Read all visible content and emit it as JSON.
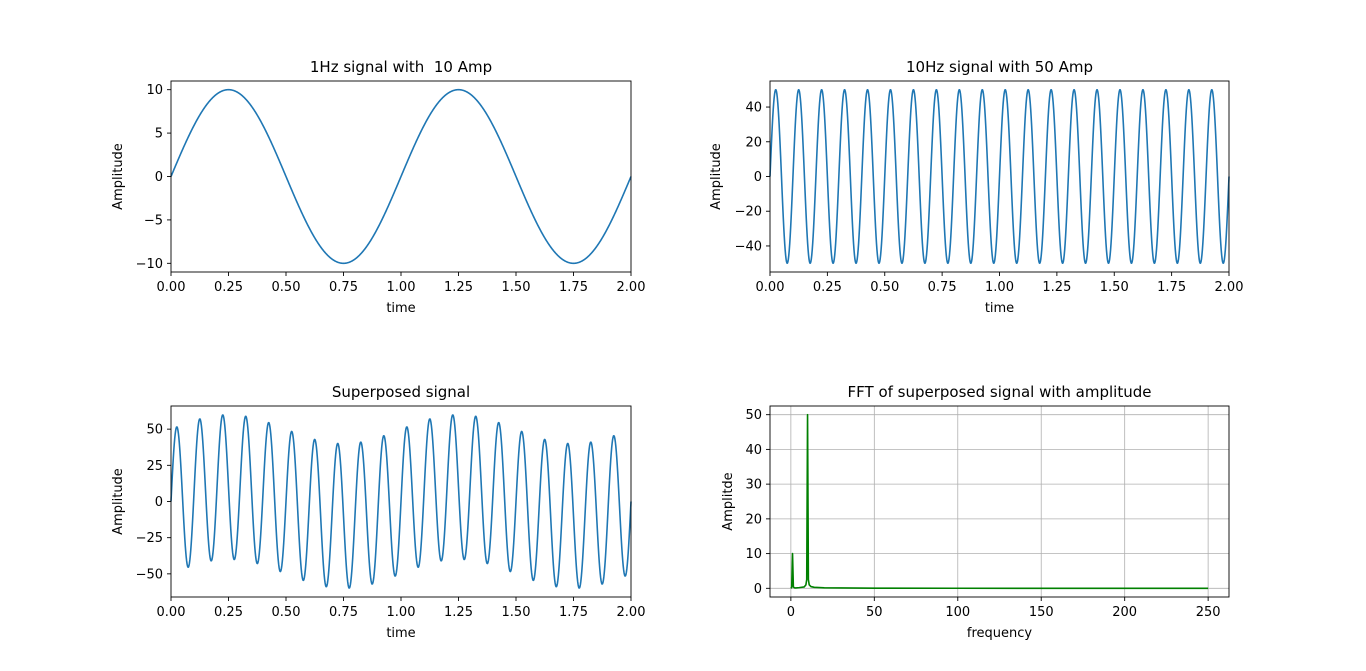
{
  "chart_data": [
    {
      "type": "line",
      "title": "1Hz signal with  10 Amp",
      "xlabel": "time",
      "ylabel": "Amplitude",
      "xlim": [
        0,
        2
      ],
      "ylim": [
        -11,
        11
      ],
      "xticks": [
        0,
        0.25,
        0.5,
        0.75,
        1.0,
        1.25,
        1.5,
        1.75,
        2.0
      ],
      "xtick_labels": [
        "0.00",
        "0.25",
        "0.50",
        "0.75",
        "1.00",
        "1.25",
        "1.50",
        "1.75",
        "2.00"
      ],
      "yticks": [
        -10,
        -5,
        0,
        5,
        10
      ],
      "ytick_labels": [
        "−10",
        "−5",
        "0",
        "5",
        "10"
      ],
      "grid": false,
      "color": "#1f77b4",
      "series": [
        {
          "function": "sine",
          "amplitude": 10,
          "frequency_hz": 1,
          "x_range": [
            0,
            2
          ]
        }
      ]
    },
    {
      "type": "line",
      "title": "10Hz signal with 50 Amp",
      "xlabel": "time",
      "ylabel": "Amplitude",
      "xlim": [
        0,
        2
      ],
      "ylim": [
        -55,
        55
      ],
      "xticks": [
        0,
        0.25,
        0.5,
        0.75,
        1.0,
        1.25,
        1.5,
        1.75,
        2.0
      ],
      "xtick_labels": [
        "0.00",
        "0.25",
        "0.50",
        "0.75",
        "1.00",
        "1.25",
        "1.50",
        "1.75",
        "2.00"
      ],
      "yticks": [
        -40,
        -20,
        0,
        20,
        40
      ],
      "ytick_labels": [
        "−40",
        "−20",
        "0",
        "20",
        "40"
      ],
      "grid": false,
      "color": "#1f77b4",
      "series": [
        {
          "function": "sine",
          "amplitude": 50,
          "frequency_hz": 10,
          "x_range": [
            0,
            2
          ]
        }
      ]
    },
    {
      "type": "line",
      "title": "Superposed signal",
      "xlabel": "time",
      "ylabel": "Amplitude",
      "xlim": [
        0,
        2
      ],
      "ylim": [
        -66,
        66
      ],
      "xticks": [
        0,
        0.25,
        0.5,
        0.75,
        1.0,
        1.25,
        1.5,
        1.75,
        2.0
      ],
      "xtick_labels": [
        "0.00",
        "0.25",
        "0.50",
        "0.75",
        "1.00",
        "1.25",
        "1.50",
        "1.75",
        "2.00"
      ],
      "yticks": [
        -50,
        -25,
        0,
        25,
        50
      ],
      "ytick_labels": [
        "−50",
        "−25",
        "0",
        "25",
        "50"
      ],
      "grid": false,
      "color": "#1f77b4",
      "series": [
        {
          "function": "sum_of_sines",
          "components": [
            {
              "amplitude": 10,
              "frequency_hz": 1
            },
            {
              "amplitude": 50,
              "frequency_hz": 10
            }
          ],
          "x_range": [
            0,
            2
          ]
        }
      ]
    },
    {
      "type": "line",
      "title": "FFT of superposed signal with amplitude",
      "xlabel": "frequency",
      "ylabel": "Amplitde",
      "xlim": [
        -12.5,
        262.5
      ],
      "ylim": [
        -2.5,
        52.5
      ],
      "xticks": [
        0,
        50,
        100,
        150,
        200,
        250
      ],
      "xtick_labels": [
        "0",
        "50",
        "100",
        "150",
        "200",
        "250"
      ],
      "yticks": [
        0,
        10,
        20,
        30,
        40,
        50
      ],
      "ytick_labels": [
        "0",
        "10",
        "20",
        "30",
        "40",
        "50"
      ],
      "grid": true,
      "color": "#008000",
      "series": [
        {
          "x": [
            0,
            0.5,
            1,
            1.5,
            2,
            2.5,
            3,
            5,
            8,
            9,
            9.5,
            10,
            10.5,
            11,
            12,
            14,
            20,
            50,
            100,
            150,
            200,
            250
          ],
          "y": [
            0,
            0.3,
            10,
            0.4,
            0.2,
            0.1,
            0.1,
            0.2,
            0.4,
            1.0,
            2.5,
            50,
            2.5,
            1.0,
            0.5,
            0.3,
            0.15,
            0.05,
            0.02,
            0.01,
            0.01,
            0.0
          ]
        }
      ]
    }
  ]
}
